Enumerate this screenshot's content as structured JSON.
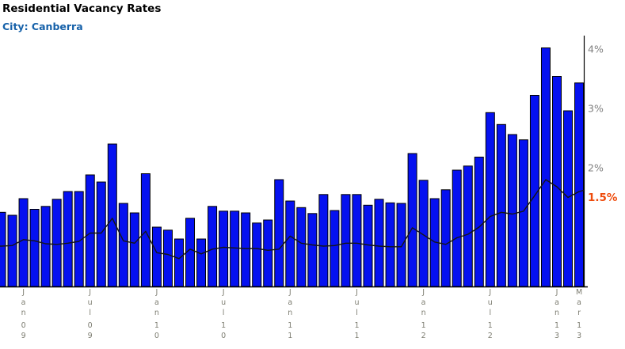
{
  "header": {
    "title": "Residential Vacancy Rates",
    "subtitle": "City: Canberra"
  },
  "chart_data": {
    "type": "bar",
    "title": "Residential Vacancy Rates",
    "subtitle": "City: Canberra",
    "unit": "%",
    "ylim": [
      0,
      4.3
    ],
    "grid": false,
    "legend_position": "none",
    "y_axis_side": "right",
    "categories": [
      "Nov 08",
      "Dec 08",
      "Jan 09",
      "Feb 09",
      "Mar 09",
      "Apr 09",
      "May 09",
      "Jun 09",
      "Jul 09",
      "Aug 09",
      "Sep 09",
      "Oct 09",
      "Nov 09",
      "Dec 09",
      "Jan 10",
      "Feb 10",
      "Mar 10",
      "Apr 10",
      "May 10",
      "Jun 10",
      "Jul 10",
      "Aug 10",
      "Sep 10",
      "Oct 10",
      "Nov 10",
      "Dec 10",
      "Jan 11",
      "Feb 11",
      "Mar 11",
      "Apr 11",
      "May 11",
      "Jun 11",
      "Jul 11",
      "Aug 11",
      "Sep 11",
      "Oct 11",
      "Nov 11",
      "Dec 11",
      "Jan 12",
      "Feb 12",
      "Mar 12",
      "Apr 12",
      "May 12",
      "Jun 12",
      "Jul 12",
      "Aug 12",
      "Sep 12",
      "Oct 12",
      "Nov 12",
      "Dec 12",
      "Jan 13",
      "Feb 13",
      "Mar 13"
    ],
    "series": [
      {
        "name": "Canberra vacancy rate",
        "type": "bar",
        "color": "#0511f0",
        "border_color": "#000000",
        "values": [
          1.25,
          1.2,
          1.48,
          1.3,
          1.35,
          1.47,
          1.6,
          1.6,
          1.88,
          1.76,
          2.4,
          1.4,
          1.24,
          1.9,
          1.0,
          0.95,
          0.8,
          1.15,
          0.8,
          1.35,
          1.27,
          1.27,
          1.24,
          1.07,
          1.12,
          1.8,
          1.44,
          1.33,
          1.23,
          1.55,
          1.28,
          1.55,
          1.55,
          1.37,
          1.47,
          1.41,
          1.4,
          2.24,
          1.79,
          1.48,
          1.63,
          1.96,
          2.03,
          2.18,
          2.93,
          2.73,
          2.56,
          2.47,
          3.22,
          4.02,
          3.54,
          2.96,
          3.43
        ]
      },
      {
        "name": "trend line",
        "type": "line",
        "color": "#151515",
        "values": [
          0.68,
          0.69,
          0.79,
          0.77,
          0.72,
          0.71,
          0.73,
          0.76,
          0.9,
          0.9,
          1.15,
          0.77,
          0.73,
          0.93,
          0.57,
          0.54,
          0.47,
          0.63,
          0.55,
          0.63,
          0.66,
          0.65,
          0.64,
          0.64,
          0.61,
          0.63,
          0.85,
          0.73,
          0.7,
          0.68,
          0.69,
          0.73,
          0.73,
          0.7,
          0.68,
          0.67,
          0.67,
          0.99,
          0.87,
          0.75,
          0.71,
          0.82,
          0.88,
          1.0,
          1.18,
          1.25,
          1.22,
          1.27,
          1.53,
          1.8,
          1.68,
          1.5,
          1.6
        ]
      }
    ],
    "y_ticks": [
      {
        "label": "4%",
        "value": 4,
        "color": "#7f7f7f",
        "bold": false
      },
      {
        "label": "3%",
        "value": 3,
        "color": "#7f7f7f",
        "bold": false
      },
      {
        "label": "2%",
        "value": 2,
        "color": "#7f7f7f",
        "bold": false
      },
      {
        "label": "1.5%",
        "value": 1.5,
        "color": "#ee4b0c",
        "bold": true
      }
    ],
    "x_ticks": [
      {
        "month": "Jan",
        "year": "09",
        "index": 2
      },
      {
        "month": "Jul",
        "year": "09",
        "index": 8
      },
      {
        "month": "Jan",
        "year": "10",
        "index": 14
      },
      {
        "month": "Jul",
        "year": "10",
        "index": 20
      },
      {
        "month": "Jan",
        "year": "11",
        "index": 26
      },
      {
        "month": "Jul",
        "year": "11",
        "index": 32
      },
      {
        "month": "Jan",
        "year": "12",
        "index": 38
      },
      {
        "month": "Jul",
        "year": "12",
        "index": 44
      },
      {
        "month": "Jan",
        "year": "13",
        "index": 50
      },
      {
        "month": "Mar",
        "year": "13",
        "index": 52
      }
    ],
    "x_tick_color": "#7d7d71",
    "axis_color": "#000000"
  }
}
